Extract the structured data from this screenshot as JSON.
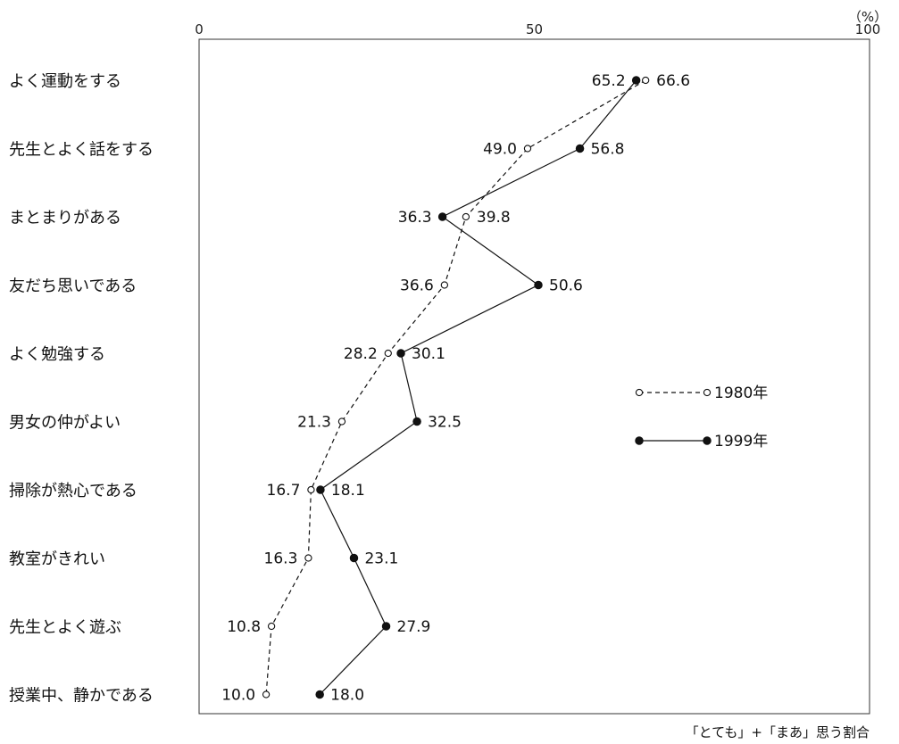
{
  "chart_data": {
    "type": "line",
    "orientation": "horizontal",
    "x_unit_label": "（%）",
    "xlim": [
      0,
      100
    ],
    "x_ticks": [
      0,
      50,
      100
    ],
    "categories": [
      "よく運動をする",
      "先生とよく話をする",
      "まとまりがある",
      "友だち思いである",
      "よく勉強する",
      "男女の仲がよい",
      "掃除が熱心である",
      "教室がきれい",
      "先生とよく遊ぶ",
      "授業中、静かである"
    ],
    "series": [
      {
        "name": "1980年",
        "values": [
          66.6,
          49.0,
          39.8,
          36.6,
          28.2,
          21.3,
          16.7,
          16.3,
          10.8,
          10.0
        ],
        "marker": "open",
        "line_style": "dashed"
      },
      {
        "name": "1999年",
        "values": [
          65.2,
          56.8,
          36.3,
          50.6,
          30.1,
          32.5,
          18.1,
          23.1,
          27.9,
          18.0
        ],
        "marker": "filled",
        "line_style": "solid"
      }
    ],
    "value_labels": [
      [
        "66.6",
        "65.2"
      ],
      [
        "49.0",
        "56.8"
      ],
      [
        "39.8",
        "36.3"
      ],
      [
        "36.6",
        "50.6"
      ],
      [
        "28.2",
        "30.1"
      ],
      [
        "21.3",
        "32.5"
      ],
      [
        "16.7",
        "18.1"
      ],
      [
        "16.3",
        "23.1"
      ],
      [
        "10.8",
        "27.9"
      ],
      [
        "10.0",
        "18.0"
      ]
    ],
    "note": "「とても」+「まあ」思う割合",
    "legend_position": "right-middle",
    "grid": false,
    "colors": {
      "line": "#111111",
      "background": "#ffffff"
    }
  }
}
